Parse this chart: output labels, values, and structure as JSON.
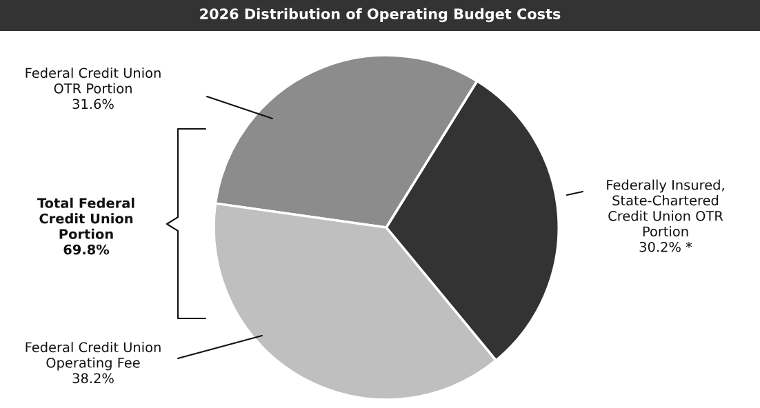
{
  "chart_data": {
    "type": "pie",
    "title": "2026 Distribution of Operating Budget Costs",
    "categories": [
      "Federally Insured,\nState-Chartered\nCredit Union OTR\nPortion",
      "Federal Credit Union\nOTR Portion",
      "Federal Credit Union\nOperating Fee"
    ],
    "values": [
      30.2,
      31.6,
      38.2
    ],
    "colors": [
      "#333333",
      "#8c8c8c",
      "#bfbfbf"
    ],
    "value_labels": [
      "30.2% *",
      "31.6%",
      "38.2%"
    ],
    "annotations": [
      "Total Federal\nCredit Union\nPortion\n69.8%"
    ]
  }
}
